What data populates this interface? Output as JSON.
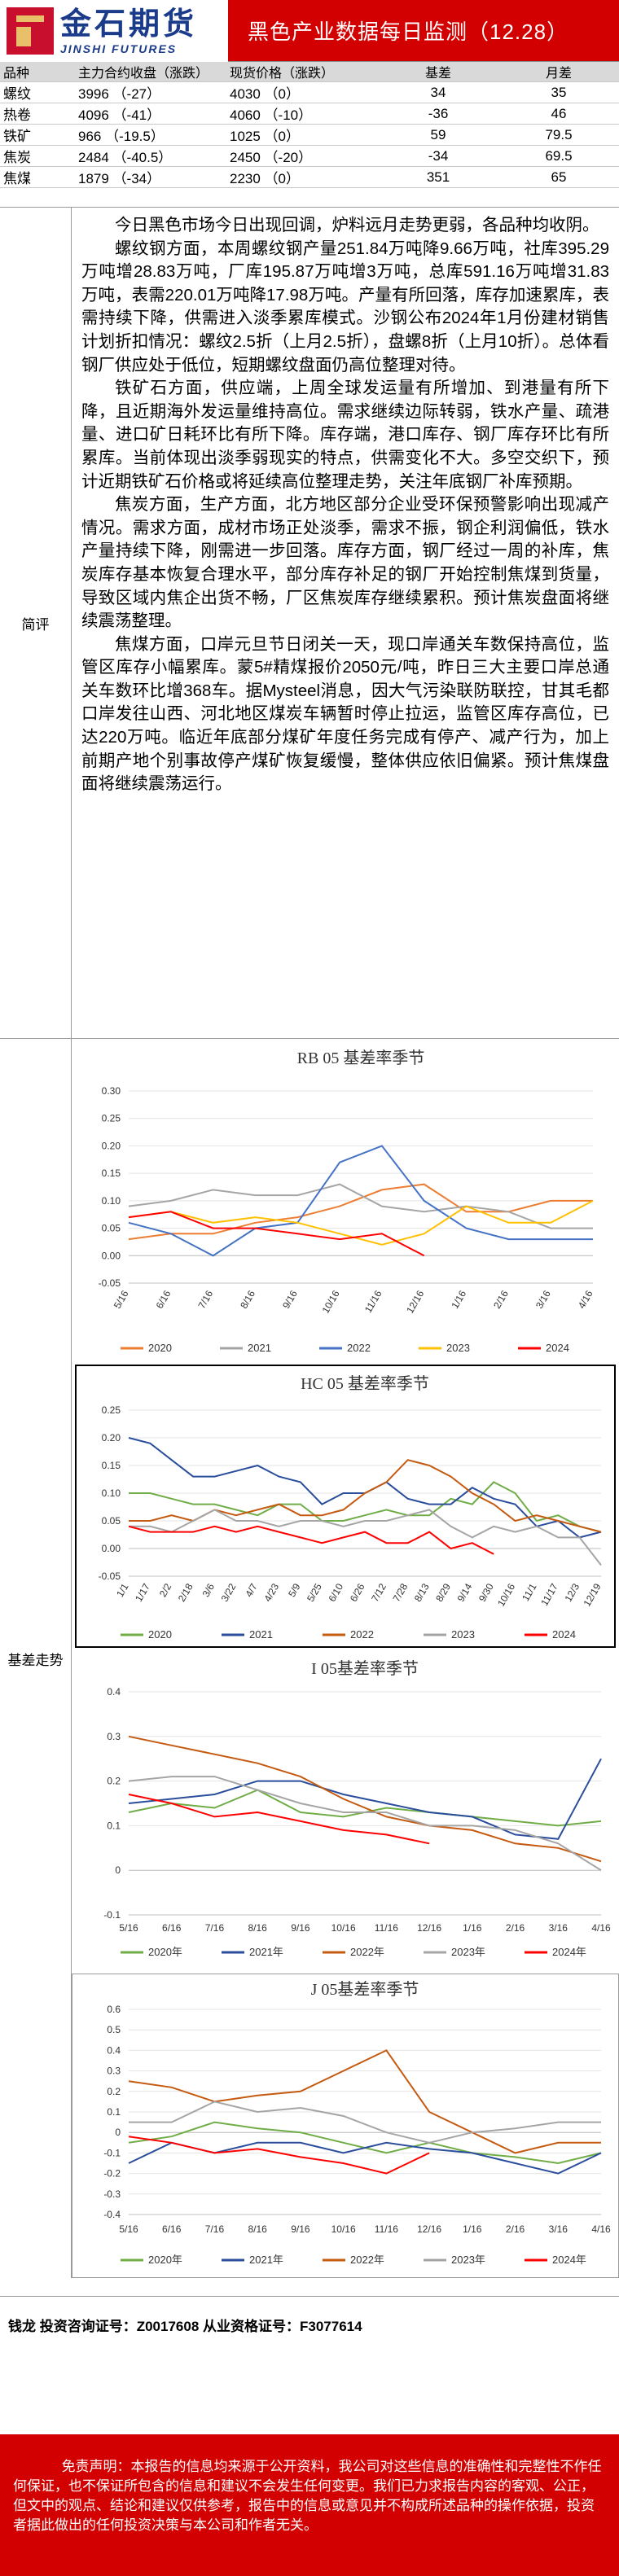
{
  "header": {
    "logo_cn": "金石期货",
    "logo_en": "JINSHI FUTURES",
    "title": "黑色产业数据每日监测（12.28）"
  },
  "table": {
    "headers": [
      "品种",
      "主力合约收盘（涨跌）",
      "现货价格（涨跌）",
      "基差",
      "月差"
    ],
    "rows": [
      [
        "螺纹",
        "3996 （-27）",
        "4030 （0）",
        "34",
        "35"
      ],
      [
        "热卷",
        "4096 （-41）",
        "4060 （-10）",
        "-36",
        "46"
      ],
      [
        "铁矿",
        "966 （-19.5）",
        "1025 （0）",
        "59",
        "79.5"
      ],
      [
        "焦炭",
        "2484 （-40.5）",
        "2450 （-20）",
        "-34",
        "69.5"
      ],
      [
        "焦煤",
        "1879 （-34）",
        "2230 （0）",
        "351",
        "65"
      ]
    ]
  },
  "commentary": {
    "label": "简评",
    "paragraphs": [
      "今日黑色市场今日出现回调，炉料远月走势更弱，各品种均收阴。",
      "螺纹钢方面，本周螺纹钢产量251.84万吨降9.66万吨，社库395.29万吨增28.83万吨，厂库195.87万吨增3万吨，总库591.16万吨增31.83万吨，表需220.01万吨降17.98万吨。产量有所回落，库存加速累库，表需持续下降，供需进入淡季累库模式。沙钢公布2024年1月份建材销售计划折扣情况：螺纹2.5折（上月2.5折），盘螺8折（上月10折）。总体看钢厂供应处于低位，短期螺纹盘面仍高位整理对待。",
      "铁矿石方面，供应端，上周全球发运量有所增加、到港量有所下降，且近期海外发运量维持高位。需求继续边际转弱，铁水产量、疏港量、进口矿日耗环比有所下降。库存端，港口库存、钢厂库存环比有所累库。当前体现出淡季弱现实的特点，供需变化不大。多空交织下，预计近期铁矿石价格或将延续高位整理走势，关注年底钢厂补库预期。",
      "焦炭方面，生产方面，北方地区部分企业受环保预警影响出现减产情况。需求方面，成材市场正处淡季，需求不振，钢企利润偏低，铁水产量持续下降，刚需进一步回落。库存方面，钢厂经过一周的补库，焦炭库存基本恢复合理水平，部分库存补足的钢厂开始控制焦煤到货量，导致区域内焦企出货不畅，厂区焦炭库存继续累积。预计焦炭盘面将继续震荡整理。",
      "焦煤方面，口岸元旦节日闭关一天，现口岸通关车数保持高位，监管区库存小幅累库。蒙5#精煤报价2050元/吨，昨日三大主要口岸总通关车数环比增368车。据Mysteel消息，因大气污染联防联控，甘其毛都口岸发往山西、河北地区煤炭车辆暂时停止拉运，监管区库存高位，已达220万吨。临近年底部分煤矿年度任务完成有停产、减产行为，加上前期产地个别事故停产煤矿恢复缓慢，整体供应依旧偏紧。预计焦煤盘面将继续震荡运行。"
    ]
  },
  "basis_label": "基差走势",
  "chart_data": [
    {
      "type": "line",
      "title": "RB 05 基差率季节",
      "categories": [
        "5/16",
        "6/16",
        "7/16",
        "8/16",
        "9/16",
        "10/16",
        "11/16",
        "12/16",
        "1/16",
        "2/16",
        "3/16",
        "4/16"
      ],
      "ylim": [
        -0.05,
        0.3
      ],
      "yticks": [
        "-0.05",
        "0.00",
        "0.05",
        "0.10",
        "0.15",
        "0.20",
        "0.25",
        "0.30"
      ],
      "series": [
        {
          "name": "2020",
          "color": "#ed7d31",
          "values": [
            0.03,
            0.04,
            0.04,
            0.06,
            0.07,
            0.09,
            0.12,
            0.13,
            0.08,
            0.08,
            0.1,
            0.1
          ]
        },
        {
          "name": "2021",
          "color": "#a5a5a5",
          "values": [
            0.09,
            0.1,
            0.12,
            0.11,
            0.11,
            0.13,
            0.09,
            0.08,
            0.09,
            0.08,
            0.05,
            0.05
          ]
        },
        {
          "name": "2022",
          "color": "#4472c4",
          "values": [
            0.06,
            0.04,
            0.0,
            0.05,
            0.06,
            0.17,
            0.2,
            0.1,
            0.05,
            0.03,
            0.03,
            0.03
          ]
        },
        {
          "name": "2023",
          "color": "#ffc000",
          "values": [
            0.07,
            0.08,
            0.06,
            0.07,
            0.06,
            0.04,
            0.02,
            0.04,
            0.09,
            0.06,
            0.06,
            0.1
          ]
        },
        {
          "name": "2024",
          "color": "#ff0000",
          "values": [
            0.07,
            0.08,
            0.05,
            0.05,
            0.04,
            0.03,
            0.04,
            0.0,
            null,
            null,
            null,
            null
          ]
        }
      ]
    },
    {
      "type": "line",
      "title": "HC 05 基差率季节",
      "categories": [
        "1/1",
        "1/17",
        "2/2",
        "2/18",
        "3/6",
        "3/22",
        "4/7",
        "4/23",
        "5/9",
        "5/25",
        "6/10",
        "6/26",
        "7/12",
        "7/28",
        "8/13",
        "8/29",
        "9/14",
        "9/30",
        "10/16",
        "11/1",
        "11/17",
        "12/3",
        "12/19"
      ],
      "ylim": [
        -0.05,
        0.25
      ],
      "yticks": [
        "-0.05",
        "0.00",
        "0.05",
        "0.10",
        "0.15",
        "0.20",
        "0.25"
      ],
      "series": [
        {
          "name": "2020",
          "color": "#70ad47",
          "values": [
            0.1,
            0.1,
            0.09,
            0.08,
            0.08,
            0.07,
            0.06,
            0.08,
            0.08,
            0.05,
            0.05,
            0.06,
            0.07,
            0.06,
            0.06,
            0.09,
            0.08,
            0.12,
            0.1,
            0.05,
            0.06,
            0.04,
            0.03
          ]
        },
        {
          "name": "2021",
          "color": "#2a4d9c",
          "values": [
            0.2,
            0.19,
            0.16,
            0.13,
            0.13,
            0.14,
            0.15,
            0.13,
            0.12,
            0.08,
            0.1,
            0.1,
            0.12,
            0.09,
            0.08,
            0.08,
            0.11,
            0.09,
            0.08,
            0.04,
            0.05,
            0.02,
            0.03
          ]
        },
        {
          "name": "2022",
          "color": "#c55a11",
          "values": [
            0.05,
            0.05,
            0.06,
            0.05,
            0.07,
            0.06,
            0.07,
            0.08,
            0.06,
            0.06,
            0.07,
            0.1,
            0.12,
            0.16,
            0.15,
            0.13,
            0.1,
            0.08,
            0.05,
            0.06,
            0.05,
            0.04,
            0.03
          ]
        },
        {
          "name": "2023",
          "color": "#a5a5a5",
          "values": [
            0.04,
            0.04,
            0.03,
            0.05,
            0.07,
            0.05,
            0.05,
            0.04,
            0.05,
            0.05,
            0.04,
            0.05,
            0.05,
            0.06,
            0.07,
            0.04,
            0.02,
            0.04,
            0.03,
            0.04,
            0.02,
            0.02,
            -0.03
          ]
        },
        {
          "name": "2024",
          "color": "#ff0000",
          "values": [
            0.04,
            0.03,
            0.03,
            0.03,
            0.04,
            0.03,
            0.04,
            0.03,
            0.02,
            0.01,
            0.02,
            0.03,
            0.01,
            0.01,
            0.03,
            0.0,
            0.01,
            -0.01,
            null,
            null,
            null,
            null,
            null
          ]
        }
      ]
    },
    {
      "type": "line",
      "title": "I 05基差率季节",
      "categories": [
        "5/16",
        "6/16",
        "7/16",
        "8/16",
        "9/16",
        "10/16",
        "11/16",
        "12/16",
        "1/16",
        "2/16",
        "3/16",
        "4/16"
      ],
      "ylim": [
        -0.1,
        0.4
      ],
      "yticks": [
        "-0.1",
        "0",
        "0.1",
        "0.2",
        "0.3",
        "0.4"
      ],
      "series": [
        {
          "name": "2020年",
          "color": "#70ad47",
          "values": [
            0.13,
            0.15,
            0.14,
            0.18,
            0.13,
            0.12,
            0.14,
            0.13,
            0.12,
            0.11,
            0.1,
            0.11
          ]
        },
        {
          "name": "2021年",
          "color": "#2a4d9c",
          "values": [
            0.15,
            0.16,
            0.17,
            0.2,
            0.2,
            0.17,
            0.15,
            0.13,
            0.12,
            0.08,
            0.07,
            0.25
          ]
        },
        {
          "name": "2022年",
          "color": "#c55a11",
          "values": [
            0.3,
            0.28,
            0.26,
            0.24,
            0.21,
            0.16,
            0.12,
            0.1,
            0.09,
            0.06,
            0.05,
            0.02
          ]
        },
        {
          "name": "2023年",
          "color": "#a5a5a5",
          "values": [
            0.2,
            0.21,
            0.21,
            0.18,
            0.15,
            0.13,
            0.13,
            0.1,
            0.1,
            0.09,
            0.06,
            0.0
          ]
        },
        {
          "name": "2024年",
          "color": "#ff0000",
          "values": [
            0.17,
            0.15,
            0.12,
            0.13,
            0.11,
            0.09,
            0.08,
            0.06,
            null,
            null,
            null,
            null
          ]
        }
      ]
    },
    {
      "type": "line",
      "title": "J 05基差率季节",
      "categories": [
        "5/16",
        "6/16",
        "7/16",
        "8/16",
        "9/16",
        "10/16",
        "11/16",
        "12/16",
        "1/16",
        "2/16",
        "3/16",
        "4/16"
      ],
      "ylim": [
        -0.4,
        0.6
      ],
      "yticks": [
        "-0.4",
        "-0.3",
        "-0.2",
        "-0.1",
        "0",
        "0.1",
        "0.2",
        "0.3",
        "0.4",
        "0.5",
        "0.6"
      ],
      "series": [
        {
          "name": "2020年",
          "color": "#70ad47",
          "values": [
            -0.05,
            -0.02,
            0.05,
            0.02,
            0.0,
            -0.05,
            -0.1,
            -0.05,
            -0.1,
            -0.12,
            -0.15,
            -0.1
          ]
        },
        {
          "name": "2021年",
          "color": "#2a4d9c",
          "values": [
            -0.15,
            -0.05,
            -0.1,
            -0.05,
            -0.05,
            -0.1,
            -0.05,
            -0.08,
            -0.1,
            -0.15,
            -0.2,
            -0.1
          ]
        },
        {
          "name": "2022年",
          "color": "#c55a11",
          "values": [
            0.25,
            0.22,
            0.15,
            0.18,
            0.2,
            0.3,
            0.4,
            0.1,
            0.0,
            -0.1,
            -0.05,
            -0.05
          ]
        },
        {
          "name": "2023年",
          "color": "#a5a5a5",
          "values": [
            0.05,
            0.05,
            0.15,
            0.1,
            0.12,
            0.08,
            0.0,
            -0.05,
            0.0,
            0.02,
            0.05,
            0.05
          ]
        },
        {
          "name": "2024年",
          "color": "#ff0000",
          "values": [
            -0.02,
            -0.05,
            -0.1,
            -0.08,
            -0.12,
            -0.15,
            -0.2,
            -0.1,
            null,
            null,
            null,
            null
          ]
        }
      ]
    }
  ],
  "footer": {
    "analyst": "钱龙 投资咨询证号：Z0017608 从业资格证号：F3077614",
    "disclaimer": "免责声明：本报告的信息均来源于公开资料，我公司对这些信息的准确性和完整性不作任何保证，也不保证所包含的信息和建议不会发生任何变更。我们已力求报告内容的客观、公正，但文中的观点、结论和建议仅供参考，报告中的信息或意见并不构成所述品种的操作依据，投资者据此做出的任何投资决策与本公司和作者无关。"
  }
}
